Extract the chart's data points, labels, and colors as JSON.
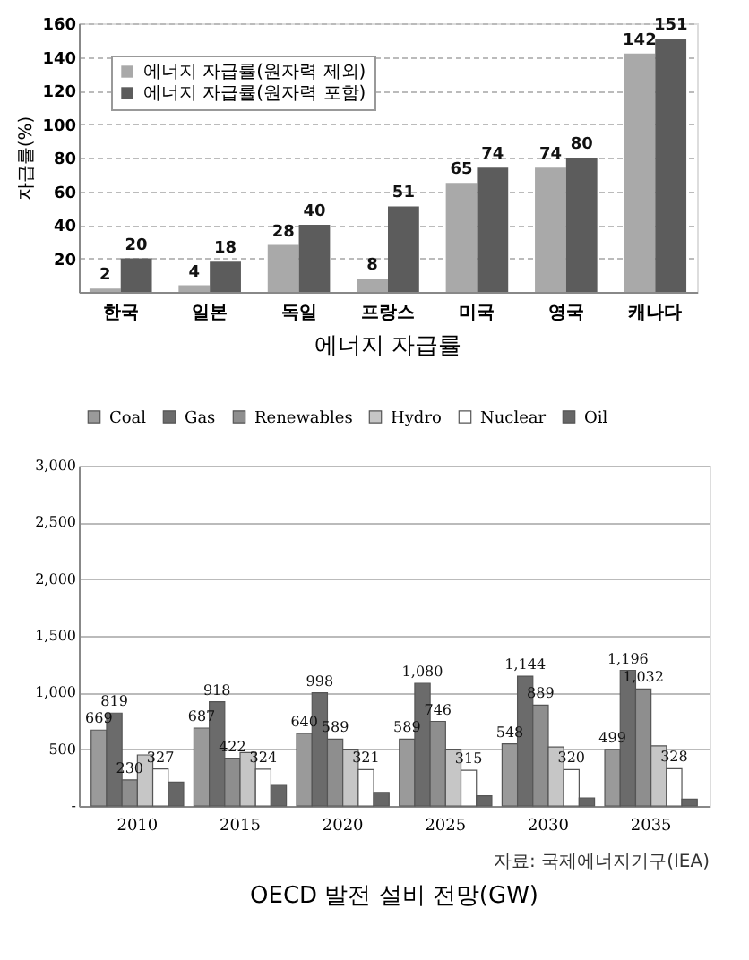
{
  "chart_data": [
    {
      "type": "bar",
      "title": "에너지 자급률",
      "ylabel": "자급률(%)",
      "categories": [
        "한국",
        "일본",
        "독일",
        "프랑스",
        "미국",
        "영국",
        "캐나다"
      ],
      "series": [
        {
          "name": "에너지 자급률(원자력 제외)",
          "color": "#a9a9a9",
          "values": [
            2,
            4,
            28,
            8,
            65,
            74,
            142
          ]
        },
        {
          "name": "에너지 자급률(원자력 포함)",
          "color": "#5c5c5c",
          "values": [
            20,
            18,
            40,
            51,
            74,
            80,
            151
          ]
        }
      ],
      "ylim": [
        0,
        160
      ],
      "yticks": [
        20,
        40,
        60,
        80,
        100,
        120,
        140,
        160
      ],
      "grid": "y",
      "legend": "top left",
      "data_labels": true
    },
    {
      "type": "bar",
      "title": "OECD 발전 설비 전망(GW)",
      "annotations": [
        "자료: 국제에너지기구(IEA)"
      ],
      "categories": [
        "2010",
        "2015",
        "2020",
        "2025",
        "2030",
        "2035"
      ],
      "series": [
        {
          "name": "Coal",
          "color": "#9a9a9a",
          "values": [
            669,
            687,
            640,
            589,
            548,
            499
          ],
          "value_labels": [
            "669",
            "687",
            "640",
            "589",
            "548",
            "499"
          ]
        },
        {
          "name": "Gas",
          "color": "#6b6b6b",
          "values": [
            819,
            918,
            998,
            1080,
            1144,
            1196
          ],
          "value_labels": [
            "819",
            "918",
            "998",
            "1,080",
            "1,144",
            "1,196"
          ]
        },
        {
          "name": "Renewables",
          "color": "#8e8e8e",
          "values": [
            230,
            422,
            589,
            746,
            889,
            1032
          ],
          "value_labels": [
            "230",
            "422",
            "589",
            "746",
            "889",
            "1,032"
          ]
        },
        {
          "name": "Hydro",
          "color": "#c6c6c6",
          "values": [
            450,
            470,
            500,
            500,
            520,
            530
          ]
        },
        {
          "name": "Nuclear",
          "color": "#ffffff",
          "values": [
            327,
            324,
            321,
            315,
            320,
            328
          ],
          "value_labels": [
            "327",
            "324",
            "321",
            "315",
            "320",
            "328"
          ]
        },
        {
          "name": "Oil",
          "color": "#666666",
          "values": [
            210,
            180,
            120,
            90,
            70,
            60
          ]
        }
      ],
      "ylim": [
        0,
        3000
      ],
      "yticks": [
        {
          "value": 0,
          "label": "-"
        },
        500,
        {
          "value": 1000,
          "label": "1,000"
        },
        {
          "value": 1500,
          "label": "1,500"
        },
        {
          "value": 2000,
          "label": "2,000"
        },
        {
          "value": 2500,
          "label": "2,500"
        },
        {
          "value": 3000,
          "label": "3,000"
        }
      ],
      "grid": "y",
      "legend": "top"
    }
  ]
}
